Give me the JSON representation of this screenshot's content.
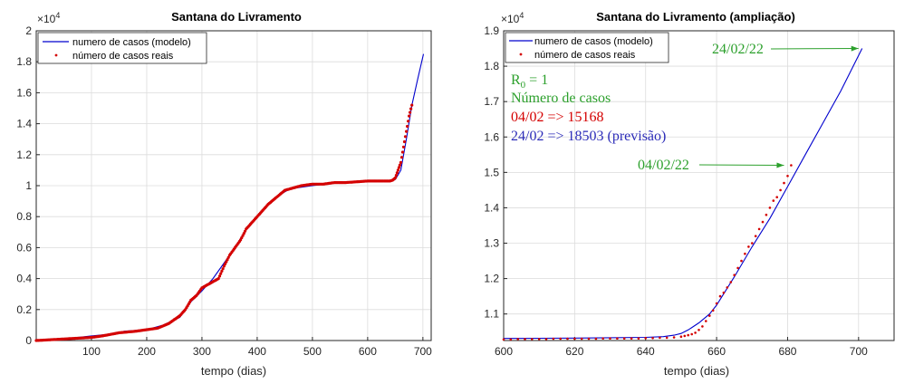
{
  "colors": {
    "model": "#0000cd",
    "real": "#d40000",
    "annot_green": "#2ca02c",
    "annot_red": "#d40000",
    "annot_blue": "#2b2bb8",
    "grid": "#dcdcdc",
    "axis": "#262626"
  },
  "chart_data": [
    {
      "type": "line",
      "title": "Santana do Livramento",
      "xlabel": "tempo (dias)",
      "ylabel": "",
      "y_exponent": "×10",
      "y_exponent_power": "4",
      "xlim": [
        0,
        715
      ],
      "ylim": [
        0,
        2
      ],
      "xticks": [
        100,
        200,
        300,
        400,
        500,
        600,
        700
      ],
      "xtick_labels": [
        "100",
        "200",
        "300",
        "400",
        "500",
        "600",
        "700"
      ],
      "yticks": [
        0,
        0.2,
        0.4,
        0.6,
        0.8,
        1,
        1.2,
        1.4,
        1.6,
        1.8,
        2
      ],
      "ytick_labels": [
        "0",
        "0.2",
        "0.4",
        "0.6",
        "0.8",
        "1",
        "1.2",
        "1.4",
        "1.6",
        "1.8",
        "2"
      ],
      "grid": true,
      "legend_position": "top-left",
      "legend": [
        "numero de casos (modelo)",
        "número de casos reais"
      ],
      "series": [
        {
          "name": "numero de casos (modelo)",
          "style": "line",
          "x": [
            0,
            50,
            100,
            130,
            160,
            200,
            230,
            260,
            280,
            300,
            320,
            340,
            360,
            380,
            400,
            420,
            440,
            460,
            500,
            550,
            600,
            640,
            650,
            660,
            670,
            680,
            690,
            701
          ],
          "y": [
            0.0,
            0.01,
            0.03,
            0.04,
            0.06,
            0.07,
            0.1,
            0.15,
            0.25,
            0.32,
            0.4,
            0.5,
            0.6,
            0.72,
            0.8,
            0.88,
            0.94,
            0.98,
            1.0,
            1.02,
            1.03,
            1.03,
            1.04,
            1.1,
            1.3,
            1.52,
            1.68,
            1.85
          ]
        },
        {
          "name": "número de casos reais",
          "style": "points",
          "x": [
            0,
            50,
            100,
            120,
            150,
            180,
            200,
            220,
            240,
            260,
            270,
            280,
            290,
            300,
            310,
            320,
            330,
            340,
            350,
            360,
            370,
            380,
            390,
            400,
            410,
            420,
            430,
            440,
            450,
            460,
            470,
            480,
            500,
            520,
            540,
            560,
            580,
            600,
            620,
            640,
            645,
            650,
            655,
            660,
            665,
            670,
            675,
            680
          ],
          "y": [
            0.0,
            0.01,
            0.02,
            0.03,
            0.05,
            0.06,
            0.07,
            0.08,
            0.11,
            0.16,
            0.2,
            0.26,
            0.29,
            0.34,
            0.36,
            0.38,
            0.4,
            0.48,
            0.55,
            0.6,
            0.65,
            0.72,
            0.76,
            0.8,
            0.84,
            0.88,
            0.91,
            0.94,
            0.97,
            0.98,
            0.99,
            1.0,
            1.01,
            1.01,
            1.02,
            1.02,
            1.025,
            1.03,
            1.03,
            1.03,
            1.035,
            1.05,
            1.1,
            1.15,
            1.25,
            1.35,
            1.45,
            1.52
          ]
        }
      ]
    },
    {
      "type": "line",
      "title": "Santana do Livramento (ampliação)",
      "xlabel": "tempo (dias)",
      "ylabel": "",
      "y_exponent": "×10",
      "y_exponent_power": "4",
      "xlim": [
        600,
        710
      ],
      "ylim": [
        1.025,
        1.9
      ],
      "xticks": [
        600,
        620,
        640,
        660,
        680,
        700
      ],
      "xtick_labels": [
        "600",
        "620",
        "640",
        "660",
        "680",
        "700"
      ],
      "yticks": [
        1.1,
        1.2,
        1.3,
        1.4,
        1.5,
        1.6,
        1.7,
        1.8,
        1.9
      ],
      "ytick_labels": [
        "1.1",
        "1.2",
        "1.3",
        "1.4",
        "1.5",
        "1.6",
        "1.7",
        "1.8",
        "1.9"
      ],
      "grid": true,
      "legend_position": "top-left",
      "legend": [
        "numero de casos (modelo)",
        "número de casos reais"
      ],
      "series": [
        {
          "name": "numero de casos (modelo)",
          "style": "line",
          "x": [
            600,
            610,
            620,
            630,
            640,
            645,
            648,
            650,
            652,
            655,
            658,
            660,
            665,
            670,
            675,
            680,
            685,
            690,
            695,
            701
          ],
          "y": [
            1.031,
            1.0315,
            1.032,
            1.033,
            1.034,
            1.036,
            1.04,
            1.045,
            1.055,
            1.075,
            1.1,
            1.125,
            1.205,
            1.29,
            1.37,
            1.46,
            1.55,
            1.64,
            1.73,
            1.85
          ]
        },
        {
          "name": "número de casos reais",
          "style": "points",
          "x": [
            600,
            602,
            604,
            606,
            608,
            610,
            612,
            614,
            616,
            618,
            620,
            622,
            624,
            626,
            628,
            630,
            632,
            634,
            636,
            638,
            640,
            642,
            644,
            646,
            648,
            650,
            651,
            652,
            653,
            654,
            655,
            656,
            657,
            658,
            659,
            660,
            661,
            662,
            663,
            664,
            665,
            666,
            667,
            668,
            669,
            670,
            671,
            672,
            673,
            674,
            675,
            676,
            677,
            678,
            679,
            680,
            681
          ],
          "y": [
            1.028,
            1.028,
            1.029,
            1.029,
            1.029,
            1.029,
            1.029,
            1.03,
            1.03,
            1.03,
            1.03,
            1.03,
            1.03,
            1.03,
            1.031,
            1.031,
            1.031,
            1.031,
            1.031,
            1.031,
            1.032,
            1.032,
            1.033,
            1.033,
            1.034,
            1.036,
            1.038,
            1.04,
            1.043,
            1.047,
            1.055,
            1.065,
            1.08,
            1.095,
            1.11,
            1.13,
            1.15,
            1.16,
            1.175,
            1.19,
            1.21,
            1.23,
            1.25,
            1.27,
            1.29,
            1.3,
            1.32,
            1.34,
            1.36,
            1.38,
            1.4,
            1.42,
            1.43,
            1.45,
            1.47,
            1.49,
            1.52
          ]
        }
      ],
      "annotations": {
        "r0": "R",
        "r0_sub": "0",
        "r0_rest": " = 1",
        "casos_heading": "Número de casos",
        "line_real": "04/02 => 15168",
        "line_prev": "24/02 => 18503 (previsão)",
        "arrow_top_label": "24/02/22",
        "arrow_top_target": {
          "x": 701,
          "y": 1.85
        },
        "arrow_mid_label": "04/02/22",
        "arrow_mid_target": {
          "x": 680,
          "y": 1.52
        }
      }
    }
  ]
}
